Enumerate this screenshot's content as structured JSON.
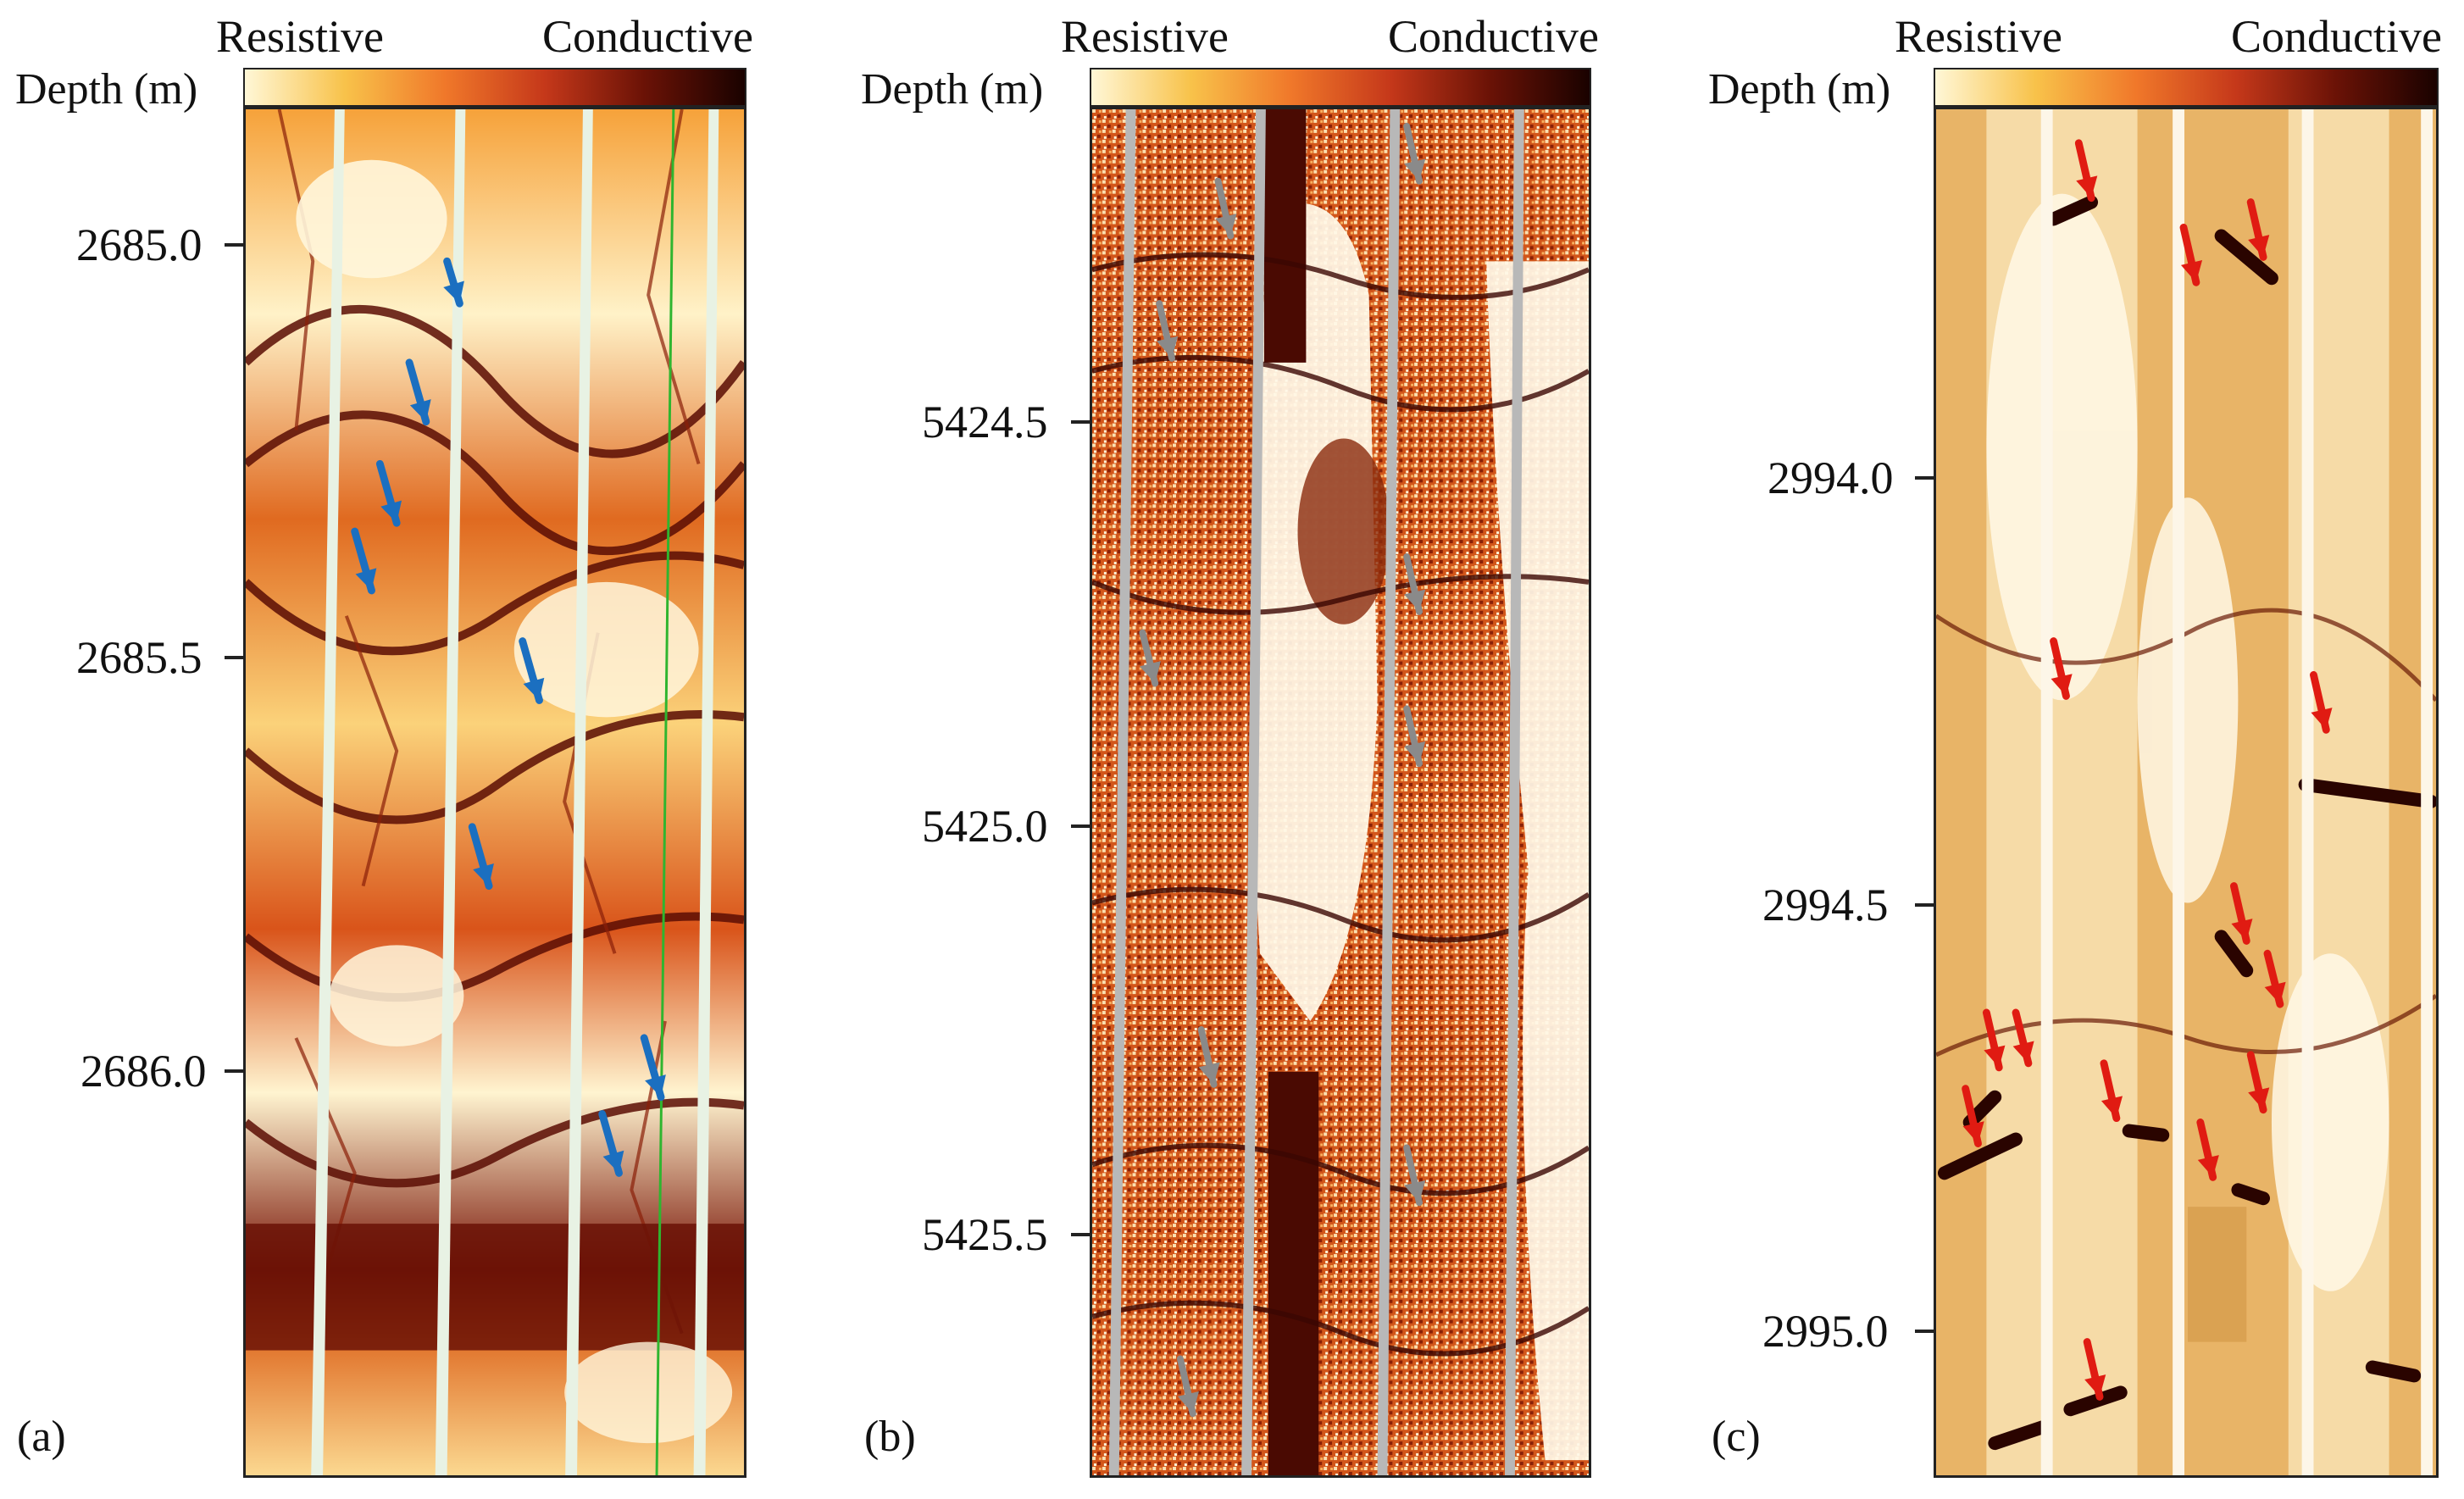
{
  "legend": {
    "low_label": "Resistive",
    "high_label": "Conductive",
    "gradient": [
      "#fff7d6",
      "#f8c24a",
      "#f0782a",
      "#c5381a",
      "#6a1206",
      "#1a0200"
    ]
  },
  "depth_label": "Depth (m)",
  "panels": [
    {
      "id": "a",
      "label": "(a)",
      "depths": [
        "2685.0",
        "2685.5",
        "2686.0"
      ],
      "arrow_color": "#1b6fc0",
      "arrow_count": 8
    },
    {
      "id": "b",
      "label": "(b)",
      "depths": [
        "5424.5",
        "5425.0",
        "5425.5"
      ],
      "arrow_color": "#8a8a8a",
      "arrow_count": 9
    },
    {
      "id": "c",
      "label": "(c)",
      "depths": [
        "2994.0",
        "2994.5",
        "2995.0"
      ],
      "arrow_color": "#e01b12",
      "arrow_count": 14
    }
  ]
}
